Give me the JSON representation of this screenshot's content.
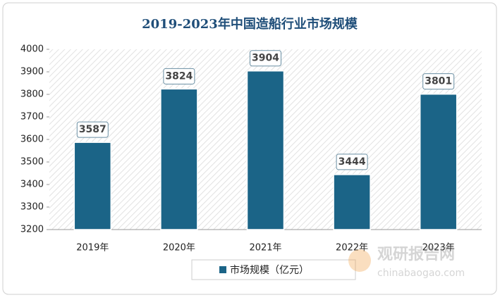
{
  "chart_data": {
    "type": "bar",
    "title": "2019-2023年中国造船行业市场规模",
    "categories": [
      "2019年",
      "2020年",
      "2021年",
      "2022年",
      "2023年"
    ],
    "series": [
      {
        "name": "市场规模（亿元）",
        "color": "#1b6487",
        "values": [
          3587,
          3824,
          3904,
          3444,
          3801
        ]
      }
    ],
    "ylim": [
      3200,
      4000
    ],
    "yticks": [
      3200,
      3300,
      3400,
      3500,
      3600,
      3700,
      3800,
      3900,
      4000
    ],
    "watermark": {
      "name": "观研报告网",
      "url": "chinabaogao.com"
    }
  }
}
